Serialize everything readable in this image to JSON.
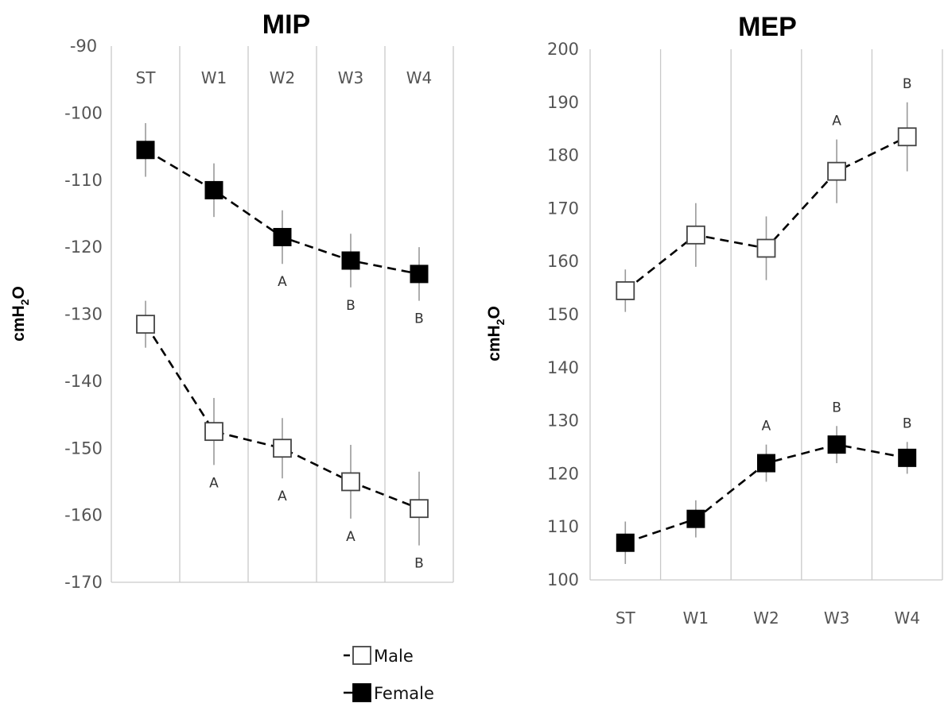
{
  "chart_data": [
    {
      "type": "line",
      "title": "MIP",
      "ylabel": "cmH2O",
      "ylabel_parts": [
        "cmH",
        "2",
        "O"
      ],
      "categories": [
        "ST",
        "W1",
        "W2",
        "W3",
        "W4"
      ],
      "category_axis_position": "top",
      "ylim": [
        -170,
        -90
      ],
      "yticks": [
        -90,
        -100,
        -110,
        -120,
        -130,
        -140,
        -150,
        -160,
        -170
      ],
      "grid": "vertical",
      "series": [
        {
          "name": "Female",
          "marker": "filled-square",
          "values": [
            -105.5,
            -111.5,
            -118.5,
            -122,
            -124
          ],
          "errors": [
            4,
            4,
            4,
            4,
            4
          ],
          "annotations": [
            "",
            "",
            "A",
            "B",
            "B"
          ]
        },
        {
          "name": "Male",
          "marker": "open-square",
          "values": [
            -131.5,
            -147.5,
            -150,
            -155,
            -159
          ],
          "errors": [
            3.5,
            5,
            4.5,
            5.5,
            5.5
          ],
          "annotations": [
            "",
            "A",
            "A",
            "A",
            "B"
          ]
        }
      ]
    },
    {
      "type": "line",
      "title": "MEP",
      "ylabel": "cmH2O",
      "ylabel_parts": [
        "cmH",
        "2",
        "O"
      ],
      "categories": [
        "ST",
        "W1",
        "W2",
        "W3",
        "W4"
      ],
      "category_axis_position": "bottom",
      "ylim": [
        100,
        200
      ],
      "yticks": [
        200,
        190,
        180,
        170,
        160,
        150,
        140,
        130,
        120,
        110,
        100
      ],
      "grid": "vertical",
      "series": [
        {
          "name": "Male",
          "marker": "open-square",
          "values": [
            154.5,
            165,
            162.5,
            177,
            183.5
          ],
          "errors": [
            4,
            6,
            6,
            6,
            6.5
          ],
          "annotations": [
            "",
            "",
            "",
            "A",
            "B"
          ]
        },
        {
          "name": "Female",
          "marker": "filled-square",
          "values": [
            107,
            111.5,
            122,
            125.5,
            123
          ],
          "errors": [
            4,
            3.5,
            3.5,
            3.5,
            3
          ],
          "annotations": [
            "",
            "",
            "A",
            "B",
            "B"
          ]
        }
      ]
    }
  ],
  "legend": {
    "position": "bottom-center",
    "items": [
      {
        "label": "Male",
        "marker": "open-square"
      },
      {
        "label": "Female",
        "marker": "filled-square"
      }
    ]
  }
}
